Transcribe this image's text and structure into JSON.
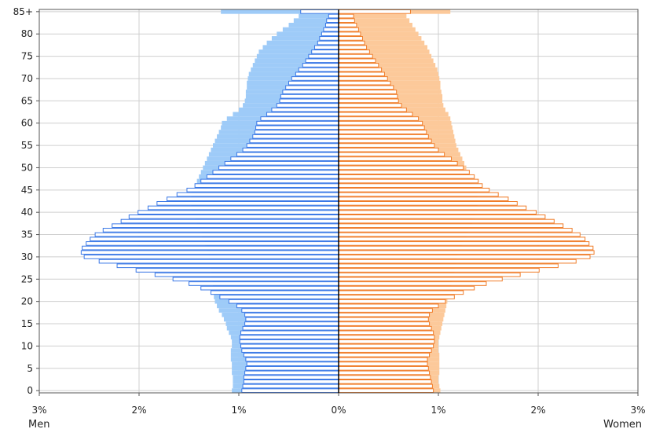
{
  "chart_data": {
    "type": "bar",
    "title": "",
    "xlabel": "",
    "ylabel": "",
    "orientation": "horizontal-pyramid",
    "xlim": [
      -3,
      3
    ],
    "x_tick_labels": [
      "3%",
      "2%",
      "1%",
      "0%",
      "1%",
      "2%",
      "3%"
    ],
    "y_tick_labels": [
      "0",
      "5",
      "10",
      "15",
      "20",
      "25",
      "30",
      "35",
      "40",
      "45",
      "50",
      "55",
      "60",
      "65",
      "70",
      "75",
      "80",
      "85+"
    ],
    "x_side_labels": {
      "left": "Men",
      "right": "Women"
    },
    "grid": true,
    "ages": [
      "0",
      "1",
      "2",
      "3",
      "4",
      "5",
      "6",
      "7",
      "8",
      "9",
      "10",
      "11",
      "12",
      "13",
      "14",
      "15",
      "16",
      "17",
      "18",
      "19",
      "20",
      "21",
      "22",
      "23",
      "24",
      "25",
      "26",
      "27",
      "28",
      "29",
      "30",
      "31",
      "32",
      "33",
      "34",
      "35",
      "36",
      "37",
      "38",
      "39",
      "40",
      "41",
      "42",
      "43",
      "44",
      "45",
      "46",
      "47",
      "48",
      "49",
      "50",
      "51",
      "52",
      "53",
      "54",
      "55",
      "56",
      "57",
      "58",
      "59",
      "60",
      "61",
      "62",
      "63",
      "64",
      "65",
      "66",
      "67",
      "68",
      "69",
      "70",
      "71",
      "72",
      "73",
      "74",
      "75",
      "76",
      "77",
      "78",
      "79",
      "80",
      "81",
      "82",
      "83",
      "84",
      "85+"
    ],
    "series": [
      {
        "name": "Men",
        "role": "outline",
        "color": "#3a78e6",
        "values": [
          0.97,
          0.96,
          0.95,
          0.95,
          0.94,
          0.93,
          0.92,
          0.93,
          0.95,
          0.97,
          0.98,
          0.99,
          0.99,
          0.98,
          0.96,
          0.94,
          0.93,
          0.94,
          0.97,
          1.02,
          1.1,
          1.19,
          1.28,
          1.38,
          1.5,
          1.66,
          1.84,
          2.03,
          2.22,
          2.4,
          2.55,
          2.58,
          2.57,
          2.53,
          2.49,
          2.44,
          2.36,
          2.27,
          2.18,
          2.1,
          2.01,
          1.91,
          1.82,
          1.72,
          1.62,
          1.52,
          1.44,
          1.38,
          1.32,
          1.26,
          1.2,
          1.14,
          1.08,
          1.02,
          0.96,
          0.92,
          0.89,
          0.86,
          0.84,
          0.83,
          0.82,
          0.78,
          0.72,
          0.67,
          0.62,
          0.59,
          0.58,
          0.56,
          0.53,
          0.5,
          0.47,
          0.43,
          0.4,
          0.36,
          0.33,
          0.3,
          0.27,
          0.24,
          0.21,
          0.19,
          0.17,
          0.15,
          0.13,
          0.12,
          0.1,
          0.38
        ]
      },
      {
        "name": "Women",
        "role": "outline",
        "color": "#f07d2a",
        "values": [
          0.95,
          0.94,
          0.93,
          0.92,
          0.91,
          0.9,
          0.89,
          0.89,
          0.91,
          0.93,
          0.95,
          0.96,
          0.96,
          0.95,
          0.93,
          0.91,
          0.9,
          0.91,
          0.94,
          1.0,
          1.07,
          1.16,
          1.25,
          1.36,
          1.48,
          1.64,
          1.82,
          2.01,
          2.2,
          2.38,
          2.52,
          2.56,
          2.55,
          2.51,
          2.47,
          2.42,
          2.34,
          2.25,
          2.16,
          2.07,
          1.98,
          1.88,
          1.79,
          1.7,
          1.6,
          1.51,
          1.44,
          1.4,
          1.36,
          1.31,
          1.25,
          1.19,
          1.13,
          1.06,
          1.0,
          0.96,
          0.93,
          0.9,
          0.88,
          0.86,
          0.84,
          0.8,
          0.74,
          0.68,
          0.63,
          0.6,
          0.59,
          0.58,
          0.55,
          0.52,
          0.49,
          0.46,
          0.43,
          0.4,
          0.37,
          0.34,
          0.31,
          0.28,
          0.26,
          0.24,
          0.22,
          0.2,
          0.18,
          0.16,
          0.15,
          0.72
        ]
      },
      {
        "name": "Men",
        "role": "comparison-fill",
        "color": "#9ecbf8",
        "values": [
          1.07,
          1.06,
          1.06,
          1.06,
          1.07,
          1.07,
          1.07,
          1.08,
          1.08,
          1.08,
          1.07,
          1.07,
          1.08,
          1.1,
          1.12,
          1.13,
          1.15,
          1.17,
          1.2,
          1.22,
          1.24,
          1.25,
          1.25,
          1.26,
          1.26,
          1.27,
          1.27,
          1.28,
          1.28,
          1.29,
          1.3,
          1.31,
          1.32,
          1.34,
          1.35,
          1.37,
          1.39,
          1.4,
          1.42,
          1.44,
          1.46,
          1.47,
          1.48,
          1.48,
          1.47,
          1.46,
          1.44,
          1.42,
          1.4,
          1.38,
          1.36,
          1.34,
          1.32,
          1.3,
          1.28,
          1.26,
          1.24,
          1.22,
          1.2,
          1.18,
          1.17,
          1.12,
          1.06,
          1.0,
          0.96,
          0.94,
          0.93,
          0.93,
          0.92,
          0.92,
          0.91,
          0.9,
          0.88,
          0.86,
          0.84,
          0.82,
          0.8,
          0.76,
          0.72,
          0.67,
          0.62,
          0.56,
          0.5,
          0.45,
          0.4,
          1.18
        ]
      },
      {
        "name": "Women",
        "role": "comparison-fill",
        "color": "#fcc99a",
        "values": [
          1.02,
          1.01,
          1.0,
          1.0,
          1.01,
          1.01,
          1.01,
          1.01,
          1.01,
          1.0,
          1.0,
          1.0,
          1.01,
          1.02,
          1.03,
          1.04,
          1.05,
          1.06,
          1.07,
          1.08,
          1.09,
          1.1,
          1.11,
          1.12,
          1.13,
          1.14,
          1.15,
          1.16,
          1.17,
          1.18,
          1.19,
          1.2,
          1.22,
          1.24,
          1.26,
          1.28,
          1.3,
          1.32,
          1.34,
          1.36,
          1.38,
          1.39,
          1.4,
          1.4,
          1.39,
          1.38,
          1.36,
          1.34,
          1.32,
          1.3,
          1.28,
          1.26,
          1.24,
          1.22,
          1.2,
          1.18,
          1.17,
          1.16,
          1.15,
          1.14,
          1.13,
          1.12,
          1.1,
          1.07,
          1.05,
          1.04,
          1.04,
          1.03,
          1.02,
          1.02,
          1.01,
          1.0,
          0.99,
          0.97,
          0.95,
          0.93,
          0.91,
          0.89,
          0.86,
          0.83,
          0.8,
          0.77,
          0.74,
          0.71,
          0.68,
          1.12
        ]
      }
    ]
  }
}
